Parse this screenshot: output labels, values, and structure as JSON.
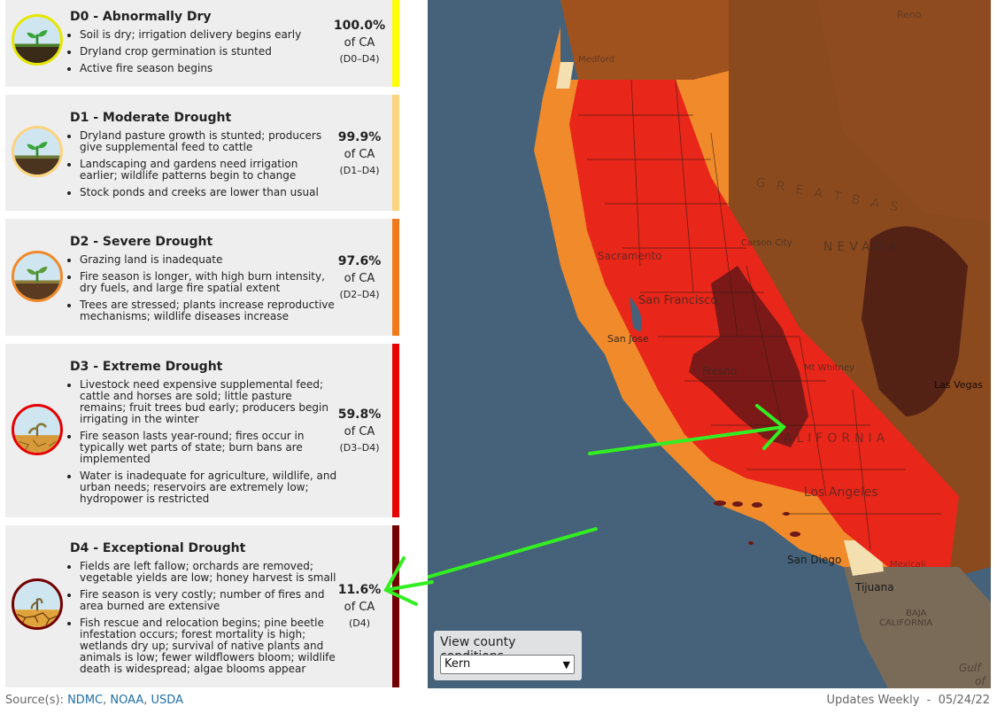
{
  "legend": [
    {
      "title": "D0 - Abnormally Dry",
      "impacts": [
        "Soil is dry; irrigation delivery begins early",
        "Dryland crop germination is stunted",
        "Active fire season begins"
      ],
      "percent": "100.0%",
      "of_label": "of CA",
      "range": "(D0–D4)",
      "color": "#ffff00"
    },
    {
      "title": "D1 - Moderate Drought",
      "impacts": [
        "Dryland pasture growth is stunted; producers give supplemental feed to cattle",
        "Landscaping and gardens need irrigation earlier; wildlife patterns begin to change",
        "Stock ponds and creeks are lower than usual"
      ],
      "percent": "99.9%",
      "of_label": "of CA",
      "range": "(D1–D4)",
      "color": "#fcd37f"
    },
    {
      "title": "D2 - Severe Drought",
      "impacts": [
        "Grazing land is inadequate",
        "Fire season is longer, with high burn intensity, dry fuels, and large fire spatial extent",
        "Trees are stressed; plants increase reproductive mechanisms; wildlife diseases increase"
      ],
      "percent": "97.6%",
      "of_label": "of CA",
      "range": "(D2–D4)",
      "color": "#ffaa00"
    },
    {
      "title": "D3 - Extreme Drought",
      "impacts": [
        "Livestock need expensive supplemental feed; cattle and horses are sold; little pasture remains; fruit trees bud early; producers begin irrigating in the winter",
        "Fire season lasts year-round; fires occur in typically wet parts of state; burn bans are implemented",
        "Water is inadequate for agriculture, wildlife, and urban needs; reservoirs are extremely low; hydropower is restricted"
      ],
      "percent": "59.8%",
      "of_label": "of CA",
      "range": "(D3–D4)",
      "color": "#e60000"
    },
    {
      "title": "D4 - Exceptional Drought",
      "impacts": [
        "Fields are left fallow; orchards are removed; vegetable yields are low; honey harvest is small",
        "Fire season is very costly; number of fires and area burned are extensive",
        "Fish rescue and relocation begins; pine beetle infestation occurs; forest mortality is high; wetlands dry up; survival of native plants and animals is low; fewer wildflowers bloom; wildlife death is widespread; algae blooms appear"
      ],
      "percent": "11.6%",
      "of_label": "of CA",
      "range": "(D4)",
      "color": "#730000"
    }
  ],
  "map_labels": {
    "san_francisco": "San Francisco",
    "sacramento": "Sacramento",
    "san_jose": "San Jose",
    "fresno": "Fresno",
    "mt_whitney": "Mt Whitney",
    "carson_city": "Carson City",
    "nevada": "NEVADA",
    "great_basin": "G R E A T   B A S",
    "las_vegas": "Las Vegas",
    "california": "CALIFORNIA",
    "los_angeles": "Los Angeles",
    "san_diego": "San Diego",
    "tijuana": "Tijuana",
    "mexicali": "Mexicali",
    "baja_line1": "BAJA",
    "baja_line2": "CALIFORNIA",
    "gulf_line1": "Gulf",
    "gulf_line2": "of",
    "medford": "Medford",
    "reno": "Reno"
  },
  "county_selector": {
    "label": "View county conditions",
    "selected": "Kern"
  },
  "footer": {
    "source_prefix": "Source(s): ",
    "sources": [
      "NDMC",
      "NOAA",
      "USDA"
    ],
    "separator": ", ",
    "updates": "Updates Weekly  -  05/24/22"
  },
  "colors": {
    "ocean": "#45627a",
    "land_outside": "#8a4a1e",
    "d0": "#f4dfb0",
    "d1": "#f0a04a",
    "d2": "#f08a2a",
    "d3": "#e8261a",
    "d4": "#6e1818",
    "annotation_arrow": "#33ee22",
    "link": "#1f6fa8"
  }
}
